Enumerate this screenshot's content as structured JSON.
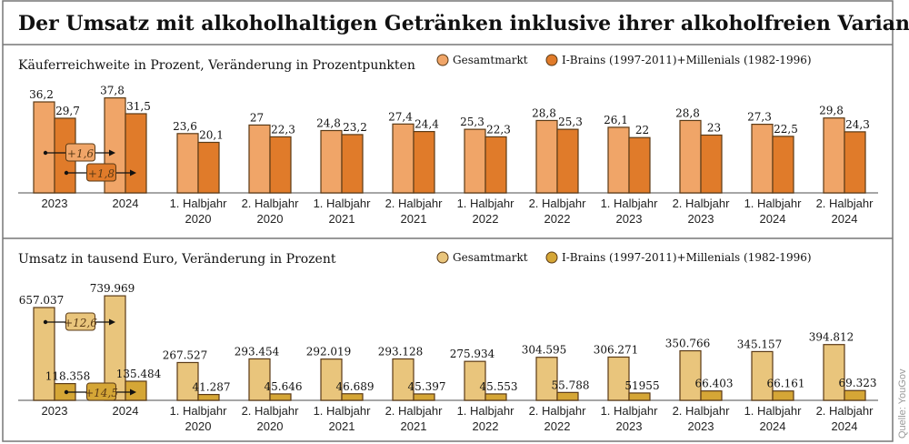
{
  "title": "Der Umsatz mit alkoholhaltigen Getränken inklusive ihrer alkoholfreien Varianten wächst",
  "source": "Quelle: YouGov",
  "chart_data": [
    {
      "type": "bar",
      "title": "Käuferreichweite in Prozent, Veränderung in Prozentpunkten",
      "categories": [
        [
          "2023"
        ],
        [
          "2024"
        ],
        [
          "1. Halbjahr",
          "2020"
        ],
        [
          "2. Halbjahr",
          "2020"
        ],
        [
          "1. Halbjahr",
          "2021"
        ],
        [
          "2. Halbjahr",
          "2021"
        ],
        [
          "1. Halbjahr",
          "2022"
        ],
        [
          "2. Halbjahr",
          "2022"
        ],
        [
          "1. Halbjahr",
          "2023"
        ],
        [
          "2. Halbjahr",
          "2023"
        ],
        [
          "1. Halbjahr",
          "2024"
        ],
        [
          "2. Halbjahr",
          "2024"
        ]
      ],
      "series": [
        {
          "name": "Gesamtmarkt",
          "color": "#f0a568",
          "values": [
            36.2,
            37.8,
            23.6,
            27,
            24.8,
            27.4,
            25.3,
            28.8,
            26.1,
            28.8,
            27.3,
            29.8
          ],
          "labels": [
            "36,2",
            "37,8",
            "23,6",
            "27",
            "24,8",
            "27,4",
            "25,3",
            "28,8",
            "26,1",
            "28,8",
            "27,3",
            "29,8"
          ]
        },
        {
          "name": "I-Brains (1997-2011)+Millenials (1982-1996)",
          "color": "#e07b2a",
          "values": [
            29.7,
            31.5,
            20.1,
            22.3,
            23.2,
            24.4,
            22.3,
            25.3,
            22,
            23,
            22.5,
            24.3
          ],
          "labels": [
            "29,7",
            "31,5",
            "20,1",
            "22,3",
            "23,2",
            "24,4",
            "22,3",
            "25,3",
            "22",
            "23",
            "22,5",
            "24,3"
          ]
        }
      ],
      "annotations": [
        {
          "series": 0,
          "text": "+1,6"
        },
        {
          "series": 1,
          "text": "+1,8"
        }
      ],
      "ylim": [
        0,
        40
      ],
      "legend": "top-right",
      "grid": false
    },
    {
      "type": "bar",
      "title": "Umsatz in tausend Euro, Veränderung in Prozent",
      "categories": [
        [
          "2023"
        ],
        [
          "2024"
        ],
        [
          "1. Halbjahr",
          "2020"
        ],
        [
          "2. Halbjahr",
          "2020"
        ],
        [
          "1. Halbjahr",
          "2021"
        ],
        [
          "2. Halbjahr",
          "2021"
        ],
        [
          "1. Halbjahr",
          "2022"
        ],
        [
          "2. Halbjahr",
          "2022"
        ],
        [
          "1. Halbjahr",
          "2023"
        ],
        [
          "2. Halbjahr",
          "2023"
        ],
        [
          "1. Halbjahr",
          "2024"
        ],
        [
          "2. Halbjahr",
          "2024"
        ]
      ],
      "series": [
        {
          "name": "Gesamtmarkt",
          "color": "#e9c57c",
          "values": [
            657.037,
            739.969,
            267.527,
            293.454,
            292.019,
            293.128,
            275.934,
            304.595,
            306.271,
            350.766,
            345.157,
            394.812
          ],
          "labels": [
            "657.037",
            "739.969",
            "267.527",
            "293.454",
            "292.019",
            "293.128",
            "275.934",
            "304.595",
            "306.271",
            "350.766",
            "345.157",
            "394.812"
          ]
        },
        {
          "name": "I-Brains (1997-2011)+Millenials (1982-1996)",
          "color": "#d5a636",
          "values": [
            118.358,
            135.484,
            41.287,
            45.646,
            46.689,
            45.397,
            45.553,
            55.788,
            51.955,
            66.403,
            66.161,
            69.323
          ],
          "labels": [
            "118.358",
            "135.484",
            "41.287",
            "45.646",
            "46.689",
            "45.397",
            "45.553",
            "55.788",
            "51955",
            "66.403",
            "66.161",
            "69.323"
          ]
        }
      ],
      "annotations": [
        {
          "series": 0,
          "text": "+12,6"
        },
        {
          "series": 1,
          "text": "+14,5"
        }
      ],
      "ylim": [
        0,
        800
      ],
      "legend": "top-right",
      "grid": false
    }
  ]
}
